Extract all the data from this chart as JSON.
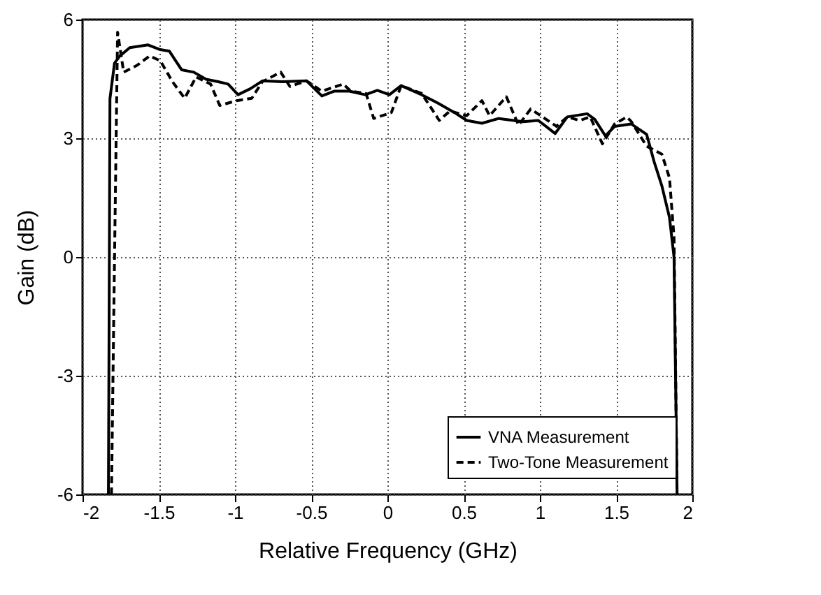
{
  "chart_data": {
    "type": "line",
    "xlabel": "Relative Frequency (GHz)",
    "ylabel": "Gain (dB)",
    "xlim": [
      -2,
      2
    ],
    "xticks": [
      -2,
      -1.5,
      -1,
      -0.5,
      0,
      0.5,
      1,
      1.5,
      2
    ],
    "ylim": [
      -6,
      6
    ],
    "yticks": [
      -6,
      -3,
      0,
      3,
      6
    ],
    "grid": true,
    "legend": "bottom right",
    "series": [
      {
        "name": "VNA Measurement",
        "color": "#000000",
        "line_style": "solid",
        "x": [
          -1.83,
          -1.82,
          -1.79,
          -1.755,
          -1.69,
          -1.57,
          -1.49,
          -1.43,
          -1.35,
          -1.27,
          -1.19,
          -1.11,
          -1.045,
          -0.98,
          -0.9,
          -0.82,
          -0.69,
          -0.53,
          -0.43,
          -0.35,
          -0.25,
          -0.145,
          -0.066,
          0.013,
          0.09,
          0.225,
          0.33,
          0.44,
          0.52,
          0.62,
          0.73,
          0.89,
          0.99,
          1.1,
          1.18,
          1.31,
          1.36,
          1.43,
          1.49,
          1.6,
          1.7,
          1.75,
          1.8,
          1.85,
          1.88,
          1.9
        ],
        "values": [
          -6,
          4.0,
          4.9,
          5.08,
          5.29,
          5.36,
          5.24,
          5.2,
          4.73,
          4.67,
          4.49,
          4.43,
          4.37,
          4.1,
          4.25,
          4.45,
          4.43,
          4.45,
          4.07,
          4.19,
          4.19,
          4.1,
          4.21,
          4.1,
          4.33,
          4.1,
          3.89,
          3.65,
          3.45,
          3.38,
          3.5,
          3.42,
          3.45,
          3.12,
          3.54,
          3.62,
          3.48,
          3.06,
          3.3,
          3.36,
          3.1,
          2.4,
          1.8,
          1.0,
          0,
          -6
        ]
      },
      {
        "name": "Two-Tone Measurement",
        "color": "#000000",
        "line_style": "dashed",
        "x": [
          -1.81,
          -1.79,
          -1.77,
          -1.73,
          -1.64,
          -1.56,
          -1.49,
          -1.41,
          -1.33,
          -1.255,
          -1.16,
          -1.1,
          -0.99,
          -0.89,
          -0.82,
          -0.7,
          -0.64,
          -0.53,
          -0.43,
          -0.29,
          -0.24,
          -0.14,
          -0.09,
          0.026,
          0.09,
          0.225,
          0.34,
          0.41,
          0.52,
          0.62,
          0.67,
          0.78,
          0.86,
          0.94,
          1.11,
          1.18,
          1.26,
          1.33,
          1.41,
          1.49,
          1.57,
          1.6,
          1.7,
          1.8,
          1.85,
          1.88,
          1.9
        ],
        "values": [
          -6,
          0,
          5.68,
          4.67,
          4.85,
          5.08,
          4.96,
          4.43,
          4.01,
          4.55,
          4.37,
          3.83,
          3.95,
          4.01,
          4.43,
          4.67,
          4.31,
          4.45,
          4.19,
          4.37,
          4.19,
          4.13,
          3.5,
          3.65,
          4.33,
          4.13,
          3.45,
          3.69,
          3.57,
          3.95,
          3.57,
          4.05,
          3.33,
          3.74,
          3.3,
          3.54,
          3.45,
          3.54,
          2.86,
          3.36,
          3.54,
          3.42,
          2.8,
          2.6,
          2.0,
          0.5,
          -6
        ]
      }
    ]
  }
}
